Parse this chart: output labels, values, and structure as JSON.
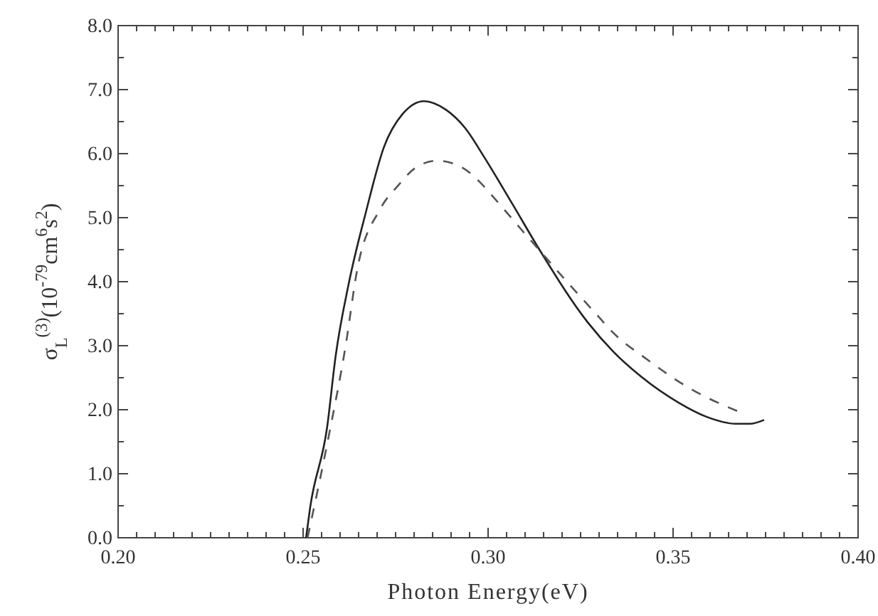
{
  "chart_data": {
    "type": "line",
    "xlabel": "Photon Energy(eV)",
    "ylabel": "σ$_{L}$$^{(3)}$(10$^{-79}$cm$^{6}$s$^{2}$)",
    "xlim": [
      0.2,
      0.4
    ],
    "ylim": [
      0,
      8
    ],
    "xticks": [
      {
        "value": 0.2,
        "label": "0.20"
      },
      {
        "value": 0.205,
        "label": null
      },
      {
        "value": 0.21,
        "label": null
      },
      {
        "value": 0.215,
        "label": null
      },
      {
        "value": 0.22,
        "label": null
      },
      {
        "value": 0.225,
        "label": null
      },
      {
        "value": 0.23,
        "label": null
      },
      {
        "value": 0.235,
        "label": null
      },
      {
        "value": 0.24,
        "label": null
      },
      {
        "value": 0.245,
        "label": null
      },
      {
        "value": 0.25,
        "label": "0.25"
      },
      {
        "value": 0.255,
        "label": null
      },
      {
        "value": 0.26,
        "label": null
      },
      {
        "value": 0.265,
        "label": null
      },
      {
        "value": 0.27,
        "label": null
      },
      {
        "value": 0.275,
        "label": null
      },
      {
        "value": 0.28,
        "label": null
      },
      {
        "value": 0.285,
        "label": null
      },
      {
        "value": 0.29,
        "label": null
      },
      {
        "value": 0.295,
        "label": null
      },
      {
        "value": 0.3,
        "label": "0.30"
      },
      {
        "value": 0.305,
        "label": null
      },
      {
        "value": 0.31,
        "label": null
      },
      {
        "value": 0.315,
        "label": null
      },
      {
        "value": 0.32,
        "label": null
      },
      {
        "value": 0.325,
        "label": null
      },
      {
        "value": 0.33,
        "label": null
      },
      {
        "value": 0.335,
        "label": null
      },
      {
        "value": 0.34,
        "label": null
      },
      {
        "value": 0.345,
        "label": null
      },
      {
        "value": 0.35,
        "label": "0.35"
      },
      {
        "value": 0.355,
        "label": null
      },
      {
        "value": 0.36,
        "label": null
      },
      {
        "value": 0.365,
        "label": null
      },
      {
        "value": 0.37,
        "label": null
      },
      {
        "value": 0.375,
        "label": null
      },
      {
        "value": 0.38,
        "label": null
      },
      {
        "value": 0.385,
        "label": null
      },
      {
        "value": 0.39,
        "label": null
      },
      {
        "value": 0.395,
        "label": null
      },
      {
        "value": 0.4,
        "label": "0.40"
      }
    ],
    "yticks": [
      {
        "value": 0,
        "label": "0.0"
      },
      {
        "value": 0.5,
        "label": null
      },
      {
        "value": 1,
        "label": "1.0"
      },
      {
        "value": 1.5,
        "label": null
      },
      {
        "value": 2,
        "label": "2.0"
      },
      {
        "value": 2.5,
        "label": null
      },
      {
        "value": 3,
        "label": "3.0"
      },
      {
        "value": 3.5,
        "label": null
      },
      {
        "value": 4,
        "label": "4.0"
      },
      {
        "value": 4.5,
        "label": null
      },
      {
        "value": 5,
        "label": "5.0"
      },
      {
        "value": 5.5,
        "label": null
      },
      {
        "value": 6,
        "label": "6.0"
      },
      {
        "value": 6.5,
        "label": null
      },
      {
        "value": 7,
        "label": "7.0"
      },
      {
        "value": 7.5,
        "label": null
      },
      {
        "value": 8,
        "label": "8.0"
      }
    ],
    "series": [
      {
        "color": "#222222",
        "line_style": "solid",
        "x": [
          0.2508,
          0.2519,
          0.2565,
          0.2588,
          0.2623,
          0.2669,
          0.2719,
          0.2769,
          0.2827,
          0.2885,
          0.2938,
          0.2988,
          0.3065,
          0.3142,
          0.327,
          0.3338,
          0.3415,
          0.3515,
          0.359,
          0.3669,
          0.3708,
          0.3746
        ],
        "values": [
          0,
          0.47,
          1.73,
          2.84,
          3.96,
          5.07,
          6.11,
          6.62,
          6.82,
          6.69,
          6.4,
          5.96,
          5.22,
          4.47,
          3.36,
          2.91,
          2.51,
          2.11,
          1.89,
          1.78,
          1.78,
          1.84
        ]
      },
      {
        "color": "#555555",
        "line_style": "dashed",
        "x": [
          0.2512,
          0.2569,
          0.2615,
          0.2646,
          0.2708,
          0.2758,
          0.2804,
          0.2862,
          0.2931,
          0.2977,
          0.3019,
          0.3092,
          0.3142,
          0.3219,
          0.3296,
          0.3335,
          0.3431,
          0.3546,
          0.3673
        ],
        "values": [
          0,
          1.58,
          3.0,
          4.18,
          5.13,
          5.51,
          5.78,
          5.89,
          5.78,
          5.56,
          5.29,
          4.8,
          4.47,
          3.96,
          3.47,
          3.22,
          2.78,
          2.33,
          1.98
        ]
      }
    ]
  }
}
